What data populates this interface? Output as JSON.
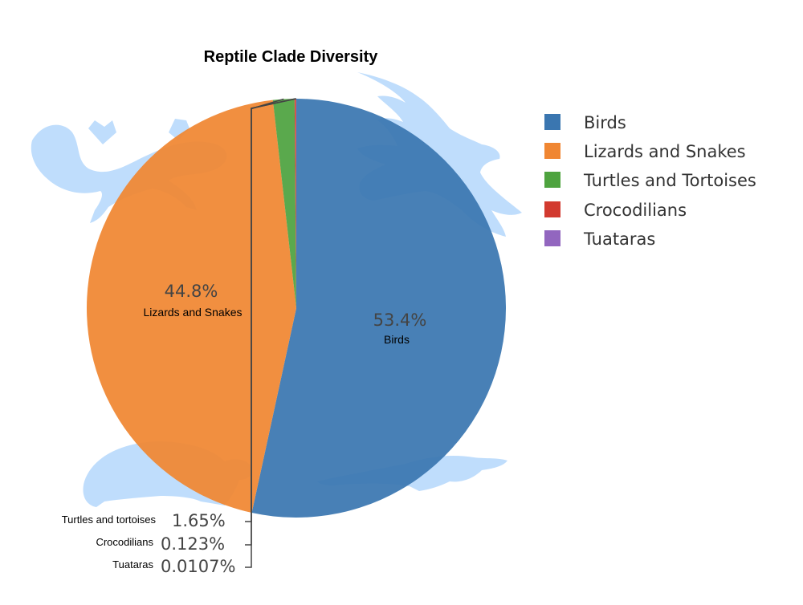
{
  "chart_data": {
    "type": "pie",
    "title": "Reptile Clade Diversity",
    "slices": [
      {
        "label": "Birds",
        "value": 53.4,
        "display": "53.4%",
        "color": "#3a76b0"
      },
      {
        "label": "Lizards and Snakes",
        "value": 44.8,
        "display": "44.8%",
        "color": "#f08632"
      },
      {
        "label": "Turtles and Tortoises",
        "value": 1.65,
        "display": "1.65%",
        "color": "#4ea33f"
      },
      {
        "label": "Crocodilians",
        "value": 0.123,
        "display": "0.123%",
        "color": "#d23a2f"
      },
      {
        "label": "Tuataras",
        "value": 0.0107,
        "display": "0.0107%",
        "color": "#9266bf"
      }
    ],
    "outside_labels": [
      "Turtles and tortoises",
      "Crocodilians",
      "Tuataras"
    ],
    "legend": {
      "position": "right"
    },
    "silhouette_color": "#a9d1fb"
  }
}
